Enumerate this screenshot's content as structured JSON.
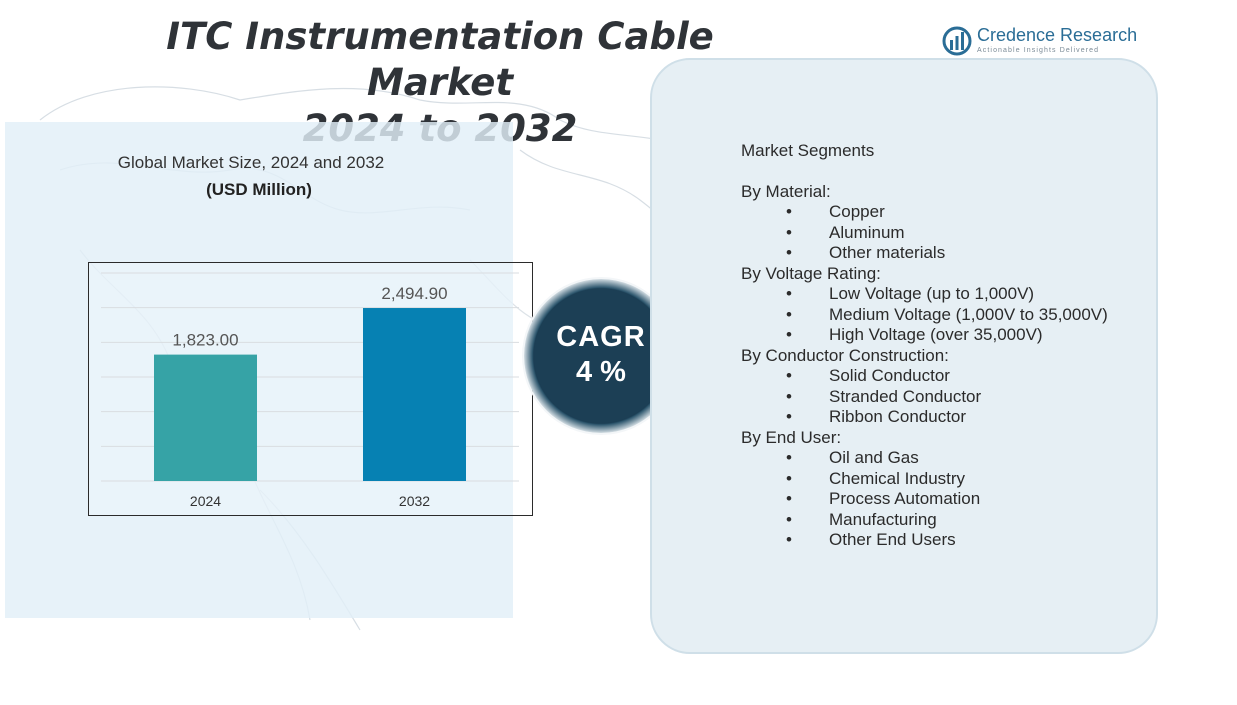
{
  "title": {
    "line1": "ITC Instrumentation Cable Market",
    "line2": "2024 to 2032"
  },
  "brand": {
    "name": "Credence Research",
    "tagline": "Actionable Insights Delivered",
    "icon": "bar-chart-logo-icon",
    "color": "#2a6d96"
  },
  "chart_heading": {
    "subtitle": "Global Market Size,  2024 and 2032",
    "unit": "(USD Million)"
  },
  "chart_data": {
    "type": "bar",
    "categories": [
      "2024",
      "2032"
    ],
    "values": [
      1823.0,
      2494.9
    ],
    "value_labels": [
      "1,823.00",
      "2,494.90"
    ],
    "colors": [
      "#36a3a6",
      "#0681b3"
    ],
    "ylim": [
      0,
      3000
    ],
    "gridlines": true,
    "legend": "none"
  },
  "cagr": {
    "label": "CAGR",
    "value": "4 %"
  },
  "segments": {
    "title": "Market Segments",
    "bullet": "•",
    "groups": [
      {
        "name": "By Material:",
        "items": [
          "Copper",
          "Aluminum",
          "Other materials"
        ]
      },
      {
        "name": "By Voltage Rating:",
        "items": [
          "Low Voltage (up to 1,000V)",
          "Medium Voltage (1,000V to 35,000V)",
          "High Voltage (over 35,000V)"
        ]
      },
      {
        "name": "By Conductor Construction:",
        "items": [
          "Solid Conductor",
          "Stranded Conductor",
          "Ribbon Conductor"
        ]
      },
      {
        "name": "By End User:",
        "items": [
          "Oil and Gas",
          "Chemical Industry",
          "Process Automation",
          "Manufacturing",
          "Other End Users"
        ]
      }
    ]
  }
}
